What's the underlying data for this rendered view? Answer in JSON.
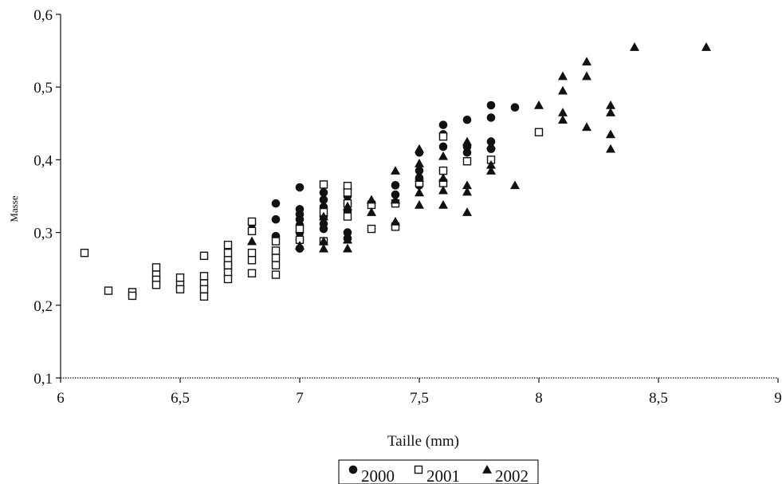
{
  "chart_data": {
    "type": "scatter",
    "title": "",
    "xlabel": "Taille (mm)",
    "ylabel": "Masse",
    "xlim": [
      6,
      9
    ],
    "ylim": [
      0.1,
      0.6
    ],
    "xticks": [
      6,
      6.5,
      7,
      7.5,
      8,
      8.5,
      9
    ],
    "xtick_labels": [
      "6",
      "6,5",
      "7",
      "7,5",
      "8",
      "8,5",
      "9"
    ],
    "yticks": [
      0.1,
      0.2,
      0.3,
      0.4,
      0.5,
      0.6
    ],
    "ytick_labels": [
      "0,1",
      "0,2",
      "0,3",
      "0,4",
      "0,5",
      "0,6"
    ],
    "grid": false,
    "legend_position": "bottom-center",
    "series": [
      {
        "name": "2000",
        "marker": "circle",
        "color": "#111111",
        "points": [
          [
            6.7,
            0.255
          ],
          [
            6.8,
            0.312
          ],
          [
            6.9,
            0.34
          ],
          [
            6.9,
            0.318
          ],
          [
            6.9,
            0.295
          ],
          [
            7.0,
            0.362
          ],
          [
            7.0,
            0.332
          ],
          [
            7.0,
            0.325
          ],
          [
            7.0,
            0.318
          ],
          [
            7.0,
            0.31
          ],
          [
            7.0,
            0.3
          ],
          [
            7.0,
            0.29
          ],
          [
            7.0,
            0.278
          ],
          [
            7.1,
            0.355
          ],
          [
            7.1,
            0.345
          ],
          [
            7.1,
            0.335
          ],
          [
            7.1,
            0.322
          ],
          [
            7.1,
            0.312
          ],
          [
            7.1,
            0.305
          ],
          [
            7.2,
            0.36
          ],
          [
            7.2,
            0.35
          ],
          [
            7.2,
            0.34
          ],
          [
            7.2,
            0.33
          ],
          [
            7.2,
            0.3
          ],
          [
            7.2,
            0.292
          ],
          [
            7.4,
            0.365
          ],
          [
            7.4,
            0.352
          ],
          [
            7.4,
            0.34
          ],
          [
            7.5,
            0.41
          ],
          [
            7.5,
            0.385
          ],
          [
            7.5,
            0.375
          ],
          [
            7.5,
            0.365
          ],
          [
            7.6,
            0.448
          ],
          [
            7.6,
            0.435
          ],
          [
            7.6,
            0.418
          ],
          [
            7.6,
            0.385
          ],
          [
            7.7,
            0.455
          ],
          [
            7.7,
            0.418
          ],
          [
            7.7,
            0.41
          ],
          [
            7.8,
            0.475
          ],
          [
            7.8,
            0.458
          ],
          [
            7.8,
            0.425
          ],
          [
            7.8,
            0.415
          ],
          [
            7.9,
            0.472
          ]
        ]
      },
      {
        "name": "2001",
        "marker": "square-open",
        "color": "#111111",
        "points": [
          [
            6.1,
            0.272
          ],
          [
            6.2,
            0.22
          ],
          [
            6.3,
            0.218
          ],
          [
            6.3,
            0.213
          ],
          [
            6.4,
            0.252
          ],
          [
            6.4,
            0.242
          ],
          [
            6.4,
            0.235
          ],
          [
            6.4,
            0.228
          ],
          [
            6.5,
            0.238
          ],
          [
            6.5,
            0.228
          ],
          [
            6.5,
            0.222
          ],
          [
            6.6,
            0.268
          ],
          [
            6.6,
            0.24
          ],
          [
            6.6,
            0.23
          ],
          [
            6.6,
            0.222
          ],
          [
            6.6,
            0.212
          ],
          [
            6.7,
            0.283
          ],
          [
            6.7,
            0.272
          ],
          [
            6.7,
            0.262
          ],
          [
            6.7,
            0.255
          ],
          [
            6.7,
            0.245
          ],
          [
            6.7,
            0.236
          ],
          [
            6.8,
            0.315
          ],
          [
            6.8,
            0.302
          ],
          [
            6.8,
            0.272
          ],
          [
            6.8,
            0.262
          ],
          [
            6.8,
            0.244
          ],
          [
            6.9,
            0.288
          ],
          [
            6.9,
            0.275
          ],
          [
            6.9,
            0.265
          ],
          [
            6.9,
            0.255
          ],
          [
            6.9,
            0.242
          ],
          [
            7.0,
            0.305
          ],
          [
            7.0,
            0.29
          ],
          [
            7.1,
            0.366
          ],
          [
            7.1,
            0.328
          ],
          [
            7.1,
            0.288
          ],
          [
            7.2,
            0.364
          ],
          [
            7.2,
            0.355
          ],
          [
            7.2,
            0.34
          ],
          [
            7.2,
            0.322
          ],
          [
            7.3,
            0.338
          ],
          [
            7.3,
            0.305
          ],
          [
            7.4,
            0.34
          ],
          [
            7.4,
            0.308
          ],
          [
            7.5,
            0.368
          ],
          [
            7.6,
            0.432
          ],
          [
            7.6,
            0.385
          ],
          [
            7.6,
            0.368
          ],
          [
            7.7,
            0.398
          ],
          [
            7.8,
            0.4
          ],
          [
            8.0,
            0.438
          ]
        ]
      },
      {
        "name": "2002",
        "marker": "triangle",
        "color": "#111111",
        "points": [
          [
            6.8,
            0.288
          ],
          [
            7.0,
            0.282
          ],
          [
            7.1,
            0.322
          ],
          [
            7.1,
            0.288
          ],
          [
            7.1,
            0.278
          ],
          [
            7.2,
            0.336
          ],
          [
            7.2,
            0.29
          ],
          [
            7.2,
            0.278
          ],
          [
            7.3,
            0.345
          ],
          [
            7.3,
            0.328
          ],
          [
            7.4,
            0.385
          ],
          [
            7.4,
            0.345
          ],
          [
            7.4,
            0.315
          ],
          [
            7.5,
            0.415
          ],
          [
            7.5,
            0.395
          ],
          [
            7.5,
            0.375
          ],
          [
            7.5,
            0.355
          ],
          [
            7.5,
            0.338
          ],
          [
            7.6,
            0.405
          ],
          [
            7.6,
            0.375
          ],
          [
            7.6,
            0.358
          ],
          [
            7.6,
            0.338
          ],
          [
            7.7,
            0.425
          ],
          [
            7.7,
            0.365
          ],
          [
            7.7,
            0.356
          ],
          [
            7.7,
            0.328
          ],
          [
            7.8,
            0.42
          ],
          [
            7.8,
            0.393
          ],
          [
            7.8,
            0.385
          ],
          [
            7.9,
            0.365
          ],
          [
            8.0,
            0.475
          ],
          [
            8.1,
            0.515
          ],
          [
            8.1,
            0.495
          ],
          [
            8.1,
            0.465
          ],
          [
            8.1,
            0.455
          ],
          [
            8.2,
            0.535
          ],
          [
            8.2,
            0.515
          ],
          [
            8.2,
            0.445
          ],
          [
            8.3,
            0.475
          ],
          [
            8.3,
            0.465
          ],
          [
            8.3,
            0.435
          ],
          [
            8.3,
            0.415
          ],
          [
            8.4,
            0.555
          ],
          [
            8.7,
            0.555
          ]
        ]
      }
    ]
  }
}
